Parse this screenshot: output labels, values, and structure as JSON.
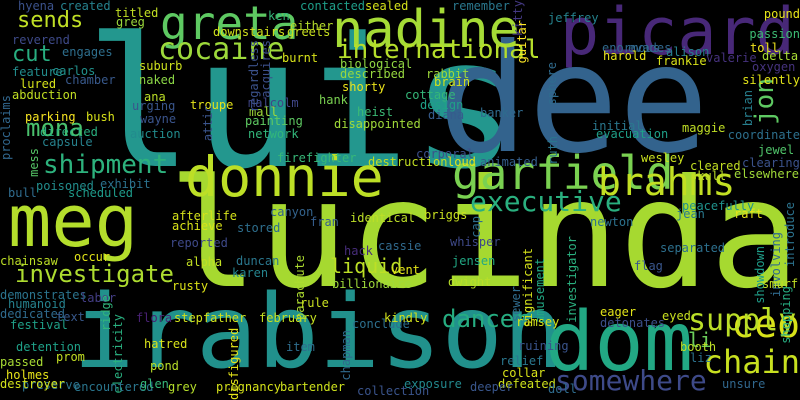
{
  "words": [
    {
      "text": "luis",
      "color": "#23978e"
    },
    {
      "text": "dee",
      "color": "#33638d"
    },
    {
      "text": "lucinda",
      "color": "#a6d930"
    },
    {
      "text": "meg",
      "color": "#b4de2c"
    },
    {
      "text": "irabison",
      "color": "#21918c"
    },
    {
      "text": "dom",
      "color": "#22a884"
    },
    {
      "text": "picard",
      "color": "#482878"
    },
    {
      "text": "donnie",
      "color": "#bddf26"
    },
    {
      "text": "nadine",
      "color": "#a5db36"
    },
    {
      "text": "greta",
      "color": "#5ec962"
    },
    {
      "text": "garfield",
      "color": "#7ad151"
    },
    {
      "text": "brahms",
      "color": "#c2df23"
    },
    {
      "text": "executive",
      "color": "#2ab07f"
    },
    {
      "text": "ceo",
      "color": "#d8e219"
    },
    {
      "text": "chain",
      "color": "#c8e020"
    },
    {
      "text": "supply",
      "color": "#bade28"
    },
    {
      "text": "shipment",
      "color": "#2db27d"
    },
    {
      "text": "cocaine",
      "color": "#9dd93b"
    },
    {
      "text": "international",
      "color": "#b5de2b"
    },
    {
      "text": "somewhere",
      "color": "#3e4a89"
    },
    {
      "text": "investigate",
      "color": "#addc30"
    },
    {
      "text": "dancer",
      "color": "#26ad81"
    },
    {
      "text": "mona",
      "color": "#4ac16d"
    },
    {
      "text": "sends",
      "color": "#c0df25"
    },
    {
      "text": "cut",
      "color": "#28ae80"
    },
    {
      "text": "liquid",
      "color": "#bddf26"
    },
    {
      "text": "jon",
      "color": "#5ec962"
    },
    {
      "text": "li",
      "color": "#6ccd5a"
    },
    {
      "text": "hyena",
      "color": "#3b528b"
    },
    {
      "text": "created",
      "color": "#26828e"
    },
    {
      "text": "titled",
      "color": "#c2df23"
    },
    {
      "text": "greg",
      "color": "#9bd93c"
    },
    {
      "text": "ken",
      "color": "#35b779"
    },
    {
      "text": "either",
      "color": "#b5de2b"
    },
    {
      "text": "contacted",
      "color": "#1f9e89"
    },
    {
      "text": "sealed",
      "color": "#d5e21a"
    },
    {
      "text": "remember",
      "color": "#2a788e"
    },
    {
      "text": "kitty",
      "color": "#443983"
    },
    {
      "text": "pound",
      "color": "#e5e419"
    },
    {
      "text": "reverend",
      "color": "#3e4a89"
    },
    {
      "text": "downstairs",
      "color": "#d0e11c"
    },
    {
      "text": "greets",
      "color": "#c8e020"
    },
    {
      "text": "jeffrey",
      "color": "#25838e"
    },
    {
      "text": "guitar",
      "color": "#fde725"
    },
    {
      "text": "passion",
      "color": "#3dbc74"
    },
    {
      "text": "toll",
      "color": "#f1e51d"
    },
    {
      "text": "delta",
      "color": "#a8db34"
    },
    {
      "text": "oxygen",
      "color": "#46337f"
    },
    {
      "text": "silently",
      "color": "#e2e418"
    },
    {
      "text": "enormous",
      "color": "#306a8e"
    },
    {
      "text": "evades",
      "color": "#31678e"
    },
    {
      "text": "alison",
      "color": "#27808e"
    },
    {
      "text": "harold",
      "color": "#e7e419"
    },
    {
      "text": "frankie",
      "color": "#d8e219"
    },
    {
      "text": "valerie",
      "color": "#46327e"
    },
    {
      "text": "engages",
      "color": "#2e6f8e"
    },
    {
      "text": "feature",
      "color": "#228d8d"
    },
    {
      "text": "lured",
      "color": "#d5e21a"
    },
    {
      "text": "abduction",
      "color": "#c2df23"
    },
    {
      "text": "chamber",
      "color": "#38598c"
    },
    {
      "text": "carlos",
      "color": "#21918c"
    },
    {
      "text": "suburb",
      "color": "#cde11d"
    },
    {
      "text": "naked",
      "color": "#8bd646"
    },
    {
      "text": "biological",
      "color": "#90d743"
    },
    {
      "text": "described",
      "color": "#97d83f"
    },
    {
      "text": "rabbit",
      "color": "#9dd93b"
    },
    {
      "text": "brain",
      "color": "#d2e21b"
    },
    {
      "text": "proclaims",
      "color": "#31678e"
    },
    {
      "text": "parking",
      "color": "#f8e621"
    },
    {
      "text": "bush",
      "color": "#d8e219"
    },
    {
      "text": "shorty",
      "color": "#ece51b"
    },
    {
      "text": "hank",
      "color": "#7ad151"
    },
    {
      "text": "heist",
      "color": "#3bbb75"
    },
    {
      "text": "banker",
      "color": "#2f6b8e"
    },
    {
      "text": "cottage",
      "color": "#35b779"
    },
    {
      "text": "design",
      "color": "#1fa187"
    },
    {
      "text": "diana",
      "color": "#365c8d"
    },
    {
      "text": "ana",
      "color": "#bddf26"
    },
    {
      "text": "urging",
      "color": "#39568c"
    },
    {
      "text": "wayne",
      "color": "#3a548c"
    },
    {
      "text": "troupe",
      "color": "#e5e419"
    },
    {
      "text": "malcolm",
      "color": "#404688"
    },
    {
      "text": "mall",
      "color": "#a0da39"
    },
    {
      "text": "painting",
      "color": "#5ec962"
    },
    {
      "text": "disappointed",
      "color": "#a0da39"
    },
    {
      "text": "initial",
      "color": "#2a788e"
    },
    {
      "text": "evacuation",
      "color": "#1fa088"
    },
    {
      "text": "maggie",
      "color": "#c0df25"
    },
    {
      "text": "coordinate",
      "color": "#2d708e"
    },
    {
      "text": "brian",
      "color": "#277f8e"
    },
    {
      "text": "directed",
      "color": "#29af7f"
    },
    {
      "text": "auction",
      "color": "#228c8d"
    },
    {
      "text": "network",
      "color": "#32b67a"
    },
    {
      "text": "burnt",
      "color": "#d8e219"
    },
    {
      "text": "acquires",
      "color": "#3c4f8a"
    },
    {
      "text": "regardless",
      "color": "#3b528b"
    },
    {
      "text": "attic",
      "color": "#3a548c"
    },
    {
      "text": "capsule",
      "color": "#26828e"
    },
    {
      "text": "mess",
      "color": "#56c667"
    },
    {
      "text": "bull",
      "color": "#2f6c8e"
    },
    {
      "text": "poisoned",
      "color": "#228d8d"
    },
    {
      "text": "exhibit",
      "color": "#2c728e"
    },
    {
      "text": "scheduled",
      "color": "#1e9b8a"
    },
    {
      "text": "firefighter",
      "color": "#37b878"
    },
    {
      "text": "destruction",
      "color": "#c2df23"
    },
    {
      "text": "corporal",
      "color": "#3c4f8a"
    },
    {
      "text": "loud",
      "color": "#e2e418"
    },
    {
      "text": "animated",
      "color": "#355f8d"
    },
    {
      "text": "ruth",
      "color": "#2a768e"
    },
    {
      "text": "wesley",
      "color": "#cae11f"
    },
    {
      "text": "cleared",
      "color": "#c2df23"
    },
    {
      "text": "skull",
      "color": "#bade28"
    },
    {
      "text": "jewel",
      "color": "#50c46a"
    },
    {
      "text": "clearing",
      "color": "#3b528b"
    },
    {
      "text": "elsewhere",
      "color": "#a0da39"
    },
    {
      "text": "afterlife",
      "color": "#d5e21a"
    },
    {
      "text": "achieve",
      "color": "#d8e219"
    },
    {
      "text": "canyon",
      "color": "#33638d"
    },
    {
      "text": "fran",
      "color": "#355e8d"
    },
    {
      "text": "identical",
      "color": "#bddf26"
    },
    {
      "text": "briggs",
      "color": "#c8e020"
    },
    {
      "text": "cap",
      "color": "#2e6e8e"
    },
    {
      "text": "newton",
      "color": "#2c728e"
    },
    {
      "text": "jean",
      "color": "#29798e"
    },
    {
      "text": "peacefully",
      "color": "#20928c"
    },
    {
      "text": "raft",
      "color": "#e5e419"
    },
    {
      "text": "introduce",
      "color": "#2c738e"
    },
    {
      "text": "reported",
      "color": "#3e4989"
    },
    {
      "text": "stored",
      "color": "#2e6f8e"
    },
    {
      "text": "hack",
      "color": "#472d7b"
    },
    {
      "text": "whisper",
      "color": "#3e4989"
    },
    {
      "text": "separated",
      "color": "#2d708e"
    },
    {
      "text": "showdown",
      "color": "#1f9e89"
    },
    {
      "text": "involving",
      "color": "#306a8e"
    },
    {
      "text": "chainsaw",
      "color": "#bddf26"
    },
    {
      "text": "occur",
      "color": "#e2e418"
    },
    {
      "text": "alpha",
      "color": "#c2df23"
    },
    {
      "text": "duncan",
      "color": "#2a778e"
    },
    {
      "text": "cassie",
      "color": "#306a8e"
    },
    {
      "text": "jensen",
      "color": "#22a884"
    },
    {
      "text": "significant",
      "color": "#d5e21a"
    },
    {
      "text": "amusement",
      "color": "#22a884"
    },
    {
      "text": "investigator",
      "color": "#2ab07f"
    },
    {
      "text": "flag",
      "color": "#39568c"
    },
    {
      "text": "smurf",
      "color": "#c0df25"
    },
    {
      "text": "humanoid",
      "color": "#26828e"
    },
    {
      "text": "demonstrates",
      "color": "#2b748e"
    },
    {
      "text": "karen",
      "color": "#25848e"
    },
    {
      "text": "rusty",
      "color": "#dde318"
    },
    {
      "text": "parachute",
      "color": "#addc30"
    },
    {
      "text": "vent",
      "color": "#e2e418"
    },
    {
      "text": "billionaire",
      "color": "#9fda3a"
    },
    {
      "text": "dwight",
      "color": "#b8de29"
    },
    {
      "text": "sewer",
      "color": "#2f6c8e"
    },
    {
      "text": "shopping",
      "color": "#27ad81"
    },
    {
      "text": "labor",
      "color": "#433d84"
    },
    {
      "text": "ridge",
      "color": "#31b57b"
    },
    {
      "text": "dedicated",
      "color": "#2f6b8e"
    },
    {
      "text": "festival",
      "color": "#1fa088"
    },
    {
      "text": "text",
      "color": "#38598c"
    },
    {
      "text": "flora",
      "color": "#482173"
    },
    {
      "text": "stepfather",
      "color": "#d0e11c"
    },
    {
      "text": "rule",
      "color": "#c8e020"
    },
    {
      "text": "february",
      "color": "#c5e021"
    },
    {
      "text": "conclude",
      "color": "#2d708e"
    },
    {
      "text": "kindly",
      "color": "#d2e21b"
    },
    {
      "text": "ramsey",
      "color": "#d5e21a"
    },
    {
      "text": "eager",
      "color": "#e2e418"
    },
    {
      "text": "detonates",
      "color": "#3c508b"
    },
    {
      "text": "eyed",
      "color": "#c8e020"
    },
    {
      "text": "detention",
      "color": "#1fa188"
    },
    {
      "text": "electricity",
      "color": "#29af7f"
    },
    {
      "text": "chapman",
      "color": "#306a8e"
    },
    {
      "text": "hatred",
      "color": "#d8e219"
    },
    {
      "text": "item",
      "color": "#2e6e8e"
    },
    {
      "text": "booth",
      "color": "#bddf26"
    },
    {
      "text": "liz",
      "color": "#2c728e"
    },
    {
      "text": "relief",
      "color": "#2a778e"
    },
    {
      "text": "ruining",
      "color": "#3a548c"
    },
    {
      "text": "passed",
      "color": "#a8db34"
    },
    {
      "text": "prom",
      "color": "#c2df23"
    },
    {
      "text": "pond",
      "color": "#b8de29"
    },
    {
      "text": "disfigured",
      "color": "#e5e419"
    },
    {
      "text": "collar",
      "color": "#d8e219"
    },
    {
      "text": "defeated",
      "color": "#cde11d"
    },
    {
      "text": "holmes",
      "color": "#e7e419"
    },
    {
      "text": "preserve",
      "color": "#2c728e"
    },
    {
      "text": "destroyer",
      "color": "#d2e21b"
    },
    {
      "text": "encountered",
      "color": "#2a768e"
    },
    {
      "text": "glen",
      "color": "#35b779"
    },
    {
      "text": "grey",
      "color": "#b5de2b"
    },
    {
      "text": "pregnancy",
      "color": "#d5e21a"
    },
    {
      "text": "bartender",
      "color": "#cde11d"
    },
    {
      "text": "collection",
      "color": "#3a548c"
    },
    {
      "text": "exposure",
      "color": "#23898e"
    },
    {
      "text": "deeper",
      "color": "#39568c"
    },
    {
      "text": "doll",
      "color": "#2f6c8e"
    },
    {
      "text": "unsure",
      "color": "#31688e"
    },
    {
      "text": "sphere",
      "color": "#2f6b8e"
    }
  ]
}
